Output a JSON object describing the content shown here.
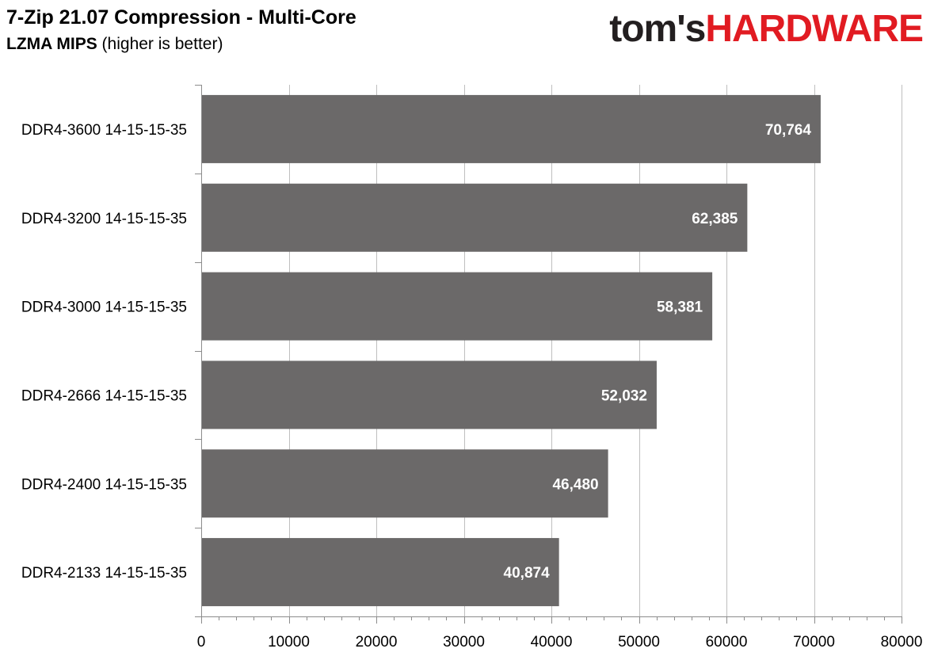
{
  "header": {
    "title": "7-Zip 21.07 Compression - Multi-Core",
    "subtitle_bold": "LZMA MIPS",
    "subtitle_rest": " (higher is better)",
    "logo_part1": "tom's",
    "logo_part2": "HARDWARE"
  },
  "colors": {
    "bar": "#6b6969",
    "grid": "#bfbfbf",
    "axis": "#8c8c8c",
    "logo_dark": "#231f20",
    "logo_red": "#e11b22"
  },
  "chart_data": {
    "type": "bar",
    "orientation": "horizontal",
    "title": "7-Zip 21.07 Compression - Multi-Core",
    "subtitle": "LZMA MIPS (higher is better)",
    "categories": [
      "DDR4-3600 14-15-15-35",
      "DDR4-3200 14-15-15-35",
      "DDR4-3000 14-15-15-35",
      "DDR4-2666 14-15-15-35",
      "DDR4-2400 14-15-15-35",
      "DDR4-2133 14-15-15-35"
    ],
    "values": [
      70764,
      62385,
      58381,
      52032,
      46480,
      40874
    ],
    "value_labels": [
      "70,764",
      "62,385",
      "58,381",
      "52,032",
      "46,480",
      "40,874"
    ],
    "xlim": [
      0,
      80000
    ],
    "xticks": [
      0,
      10000,
      20000,
      30000,
      40000,
      50000,
      60000,
      70000,
      80000
    ],
    "xtick_labels": [
      "0",
      "10000",
      "20000",
      "30000",
      "40000",
      "50000",
      "60000",
      "70000",
      "80000"
    ],
    "grid": true,
    "legend": "none"
  }
}
